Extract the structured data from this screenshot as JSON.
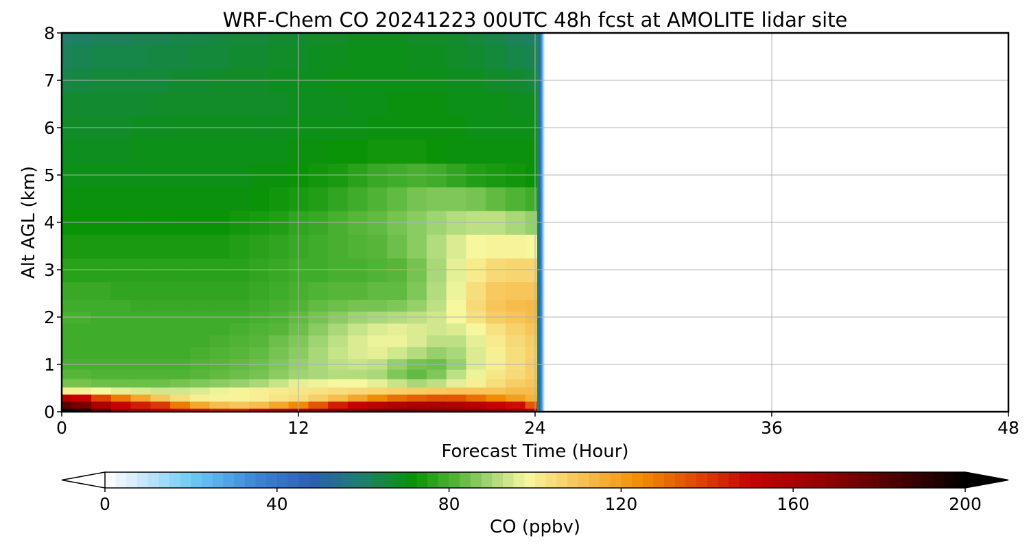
{
  "chart_data": {
    "type": "heatmap",
    "title": "WRF-Chem CO  20241223 00UTC 48h fcst at AMOLITE lidar site",
    "xlabel": "Forecast Time (Hour)",
    "ylabel": "Alt AGL (km)",
    "xlim": [
      0,
      48
    ],
    "ylim": [
      0,
      8
    ],
    "x_ticks": [
      "0",
      "12",
      "24",
      "36",
      "48"
    ],
    "y_ticks": [
      "0",
      "1",
      "2",
      "3",
      "4",
      "5",
      "6",
      "7",
      "8"
    ],
    "grid": true,
    "data_valid_until_hour": 24.5,
    "colorbar": {
      "label": "CO  (ppbv)",
      "range": [
        0,
        200
      ],
      "ticks": [
        "0",
        "40",
        "80",
        "120",
        "160",
        "200"
      ],
      "extend": "both",
      "colors": [
        {
          "v": 0,
          "c": "#ffffff"
        },
        {
          "v": 8,
          "c": "#cfe9fb"
        },
        {
          "v": 20,
          "c": "#6ecbf6"
        },
        {
          "v": 35,
          "c": "#3d86d6"
        },
        {
          "v": 48,
          "c": "#2d5fb2"
        },
        {
          "v": 60,
          "c": "#1e7f6a"
        },
        {
          "v": 72,
          "c": "#0a9307"
        },
        {
          "v": 82,
          "c": "#57b63a"
        },
        {
          "v": 90,
          "c": "#a9d87a"
        },
        {
          "v": 98,
          "c": "#f7f7a0"
        },
        {
          "v": 110,
          "c": "#f7c559"
        },
        {
          "v": 125,
          "c": "#f08b00"
        },
        {
          "v": 140,
          "c": "#d93a05"
        },
        {
          "v": 150,
          "c": "#c90000"
        },
        {
          "v": 170,
          "c": "#8a0000"
        },
        {
          "v": 190,
          "c": "#300000"
        },
        {
          "v": 200,
          "c": "#000000"
        }
      ]
    },
    "x_hours": [
      0,
      1,
      2,
      3,
      4,
      5,
      6,
      7,
      8,
      9,
      10,
      11,
      12,
      13,
      14,
      15,
      16,
      17,
      18,
      19,
      20,
      21,
      22,
      23,
      24
    ],
    "y_km": [
      0,
      0.15,
      0.3,
      0.45,
      0.6,
      0.8,
      1.0,
      1.25,
      1.5,
      1.75,
      2.0,
      2.25,
      2.5,
      3.0,
      3.5,
      4.0,
      4.5,
      5.0,
      5.5,
      6.0,
      6.5,
      7.0,
      7.5,
      8.0
    ],
    "co_ppbv_rows_by_altitude": [
      [
        200,
        195,
        180,
        165,
        160,
        155,
        150,
        148,
        146,
        145,
        150,
        155,
        160,
        165,
        170,
        172,
        175,
        176,
        175,
        174,
        172,
        170,
        168,
        165,
        158
      ],
      [
        180,
        175,
        160,
        150,
        145,
        140,
        128,
        118,
        112,
        110,
        112,
        118,
        125,
        135,
        145,
        150,
        155,
        158,
        160,
        160,
        158,
        155,
        150,
        148,
        135
      ],
      [
        155,
        150,
        138,
        128,
        118,
        110,
        104,
        100,
        99,
        99,
        100,
        102,
        104,
        108,
        112,
        118,
        125,
        130,
        133,
        135,
        135,
        130,
        125,
        120,
        115
      ],
      [
        100,
        100,
        98,
        96,
        95,
        94,
        94,
        95,
        97,
        99,
        100,
        101,
        102,
        103,
        104,
        105,
        106,
        107,
        108,
        109,
        110,
        110,
        110,
        112,
        112
      ],
      [
        85,
        85,
        84,
        84,
        84,
        84,
        85,
        86,
        87,
        88,
        90,
        93,
        96,
        97,
        98,
        98,
        96,
        93,
        90,
        92,
        96,
        100,
        104,
        108,
        110
      ],
      [
        82,
        82,
        81,
        81,
        81,
        81,
        81,
        82,
        83,
        84,
        85,
        87,
        89,
        90,
        91,
        91,
        90,
        86,
        83,
        86,
        92,
        97,
        102,
        105,
        108
      ],
      [
        80,
        80,
        80,
        80,
        80,
        80,
        80,
        81,
        82,
        83,
        84,
        86,
        88,
        90,
        92,
        93,
        92,
        88,
        85,
        84,
        88,
        95,
        100,
        104,
        108
      ],
      [
        79,
        79,
        79,
        79,
        79,
        79,
        79,
        80,
        81,
        82,
        83,
        85,
        87,
        90,
        93,
        95,
        96,
        94,
        91,
        88,
        90,
        95,
        100,
        104,
        107
      ],
      [
        79,
        79,
        79,
        79,
        79,
        79,
        79,
        79,
        80,
        81,
        82,
        84,
        86,
        89,
        92,
        95,
        97,
        97,
        95,
        92,
        92,
        96,
        101,
        105,
        108
      ],
      [
        79,
        79,
        79,
        79,
        79,
        79,
        79,
        79,
        79,
        80,
        81,
        82,
        84,
        87,
        90,
        93,
        95,
        96,
        95,
        94,
        95,
        98,
        103,
        107,
        110
      ],
      [
        80,
        80,
        79,
        79,
        79,
        79,
        79,
        79,
        79,
        79,
        80,
        81,
        83,
        85,
        87,
        89,
        90,
        91,
        92,
        94,
        98,
        103,
        108,
        110,
        112
      ],
      [
        79,
        79,
        79,
        79,
        78,
        78,
        78,
        78,
        78,
        78,
        79,
        80,
        81,
        83,
        84,
        85,
        85,
        86,
        88,
        92,
        98,
        105,
        110,
        112,
        113
      ],
      [
        78,
        78,
        78,
        77,
        77,
        77,
        77,
        77,
        77,
        77,
        78,
        79,
        80,
        81,
        82,
        82,
        83,
        83,
        86,
        91,
        97,
        104,
        109,
        110,
        110
      ],
      [
        76,
        76,
        76,
        76,
        76,
        76,
        76,
        76,
        76,
        76,
        77,
        78,
        79,
        79,
        80,
        80,
        81,
        82,
        85,
        90,
        96,
        101,
        105,
        106,
        106
      ],
      [
        74,
        74,
        74,
        74,
        74,
        74,
        74,
        74,
        74,
        75,
        76,
        77,
        78,
        79,
        80,
        81,
        82,
        84,
        87,
        91,
        95,
        98,
        99,
        99,
        98
      ],
      [
        72,
        72,
        72,
        72,
        72,
        72,
        72,
        72,
        72,
        73,
        74,
        75,
        77,
        78,
        80,
        82,
        83,
        85,
        87,
        89,
        91,
        92,
        92,
        90,
        88
      ],
      [
        71,
        71,
        71,
        71,
        71,
        71,
        71,
        71,
        71,
        71,
        72,
        73,
        74,
        75,
        77,
        79,
        81,
        83,
        85,
        86,
        86,
        85,
        83,
        81,
        79
      ],
      [
        70,
        70,
        70,
        70,
        70,
        70,
        70,
        70,
        70,
        70,
        71,
        71,
        72,
        73,
        74,
        76,
        78,
        79,
        80,
        79,
        77,
        75,
        74,
        73,
        72
      ],
      [
        69,
        69,
        69,
        69,
        70,
        70,
        70,
        70,
        70,
        70,
        70,
        70,
        71,
        71,
        72,
        72,
        73,
        73,
        73,
        72,
        71,
        71,
        71,
        71,
        71
      ],
      [
        68,
        68,
        68,
        68,
        69,
        69,
        69,
        69,
        69,
        69,
        69,
        69,
        70,
        70,
        70,
        70,
        71,
        71,
        71,
        71,
        71,
        70,
        70,
        70,
        70
      ],
      [
        67,
        67,
        67,
        67,
        67,
        68,
        68,
        68,
        68,
        68,
        68,
        68,
        69,
        69,
        69,
        70,
        70,
        71,
        71,
        71,
        70,
        70,
        70,
        69,
        69
      ],
      [
        64,
        65,
        66,
        66,
        66,
        66,
        67,
        67,
        68,
        68,
        68,
        69,
        69,
        69,
        70,
        70,
        70,
        70,
        70,
        70,
        69,
        69,
        68,
        67,
        66
      ],
      [
        62,
        63,
        64,
        64,
        64,
        65,
        65,
        66,
        66,
        67,
        67,
        68,
        68,
        69,
        69,
        70,
        70,
        70,
        69,
        69,
        68,
        67,
        66,
        64,
        63
      ],
      [
        60,
        61,
        62,
        62,
        63,
        63,
        64,
        64,
        65,
        66,
        66,
        67,
        67,
        68,
        68,
        69,
        69,
        69,
        68,
        68,
        67,
        66,
        64,
        62,
        61
      ]
    ]
  }
}
